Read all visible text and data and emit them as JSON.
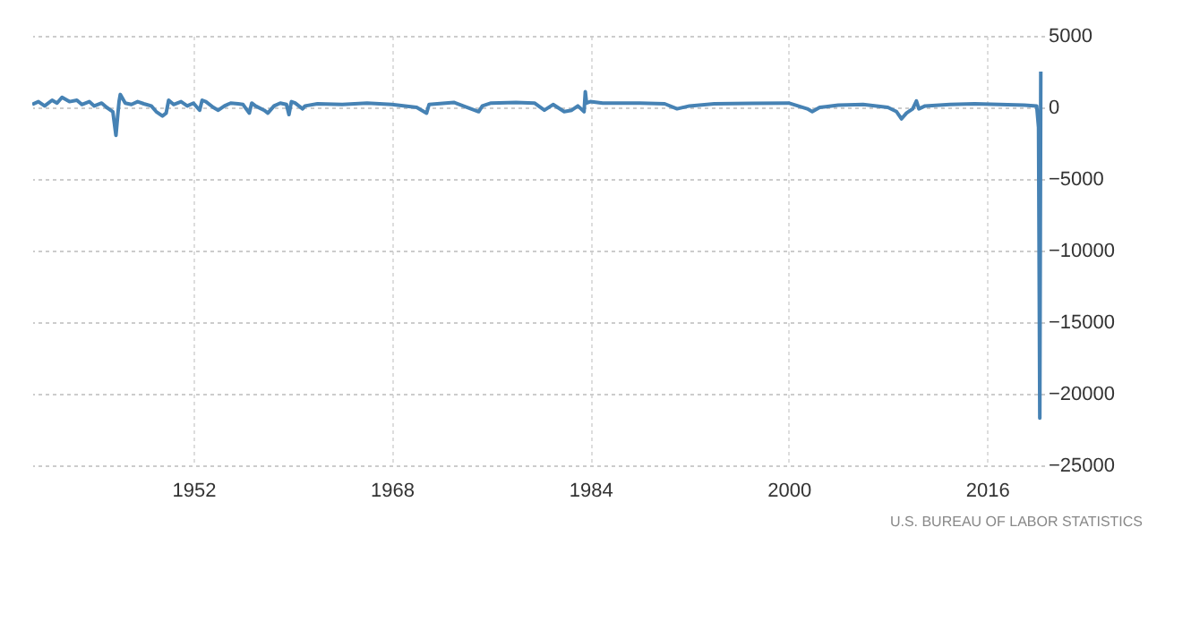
{
  "chart_data": {
    "type": "line",
    "annotations": [
      "U.S. BUREAU OF LABOR STATISTICS"
    ],
    "x": [
      1939.0,
      1939.5,
      1940.0,
      1940.6,
      1941.0,
      1941.4,
      1942.0,
      1942.6,
      1943.0,
      1943.6,
      1944.0,
      1944.6,
      1945.0,
      1945.5,
      1945.75,
      1945.9,
      1946.0,
      1946.1,
      1946.5,
      1947.0,
      1947.5,
      1948.0,
      1948.6,
      1949.0,
      1949.5,
      1949.8,
      1950.0,
      1950.4,
      1951.0,
      1951.5,
      1952.0,
      1952.5,
      1952.7,
      1953.0,
      1953.6,
      1954.0,
      1954.5,
      1955.0,
      1955.6,
      1956.0,
      1956.5,
      1956.7,
      1957.0,
      1957.7,
      1958.0,
      1958.5,
      1959.0,
      1959.5,
      1959.7,
      1959.9,
      1960.2,
      1960.8,
      1961.0,
      1962.0,
      1964.0,
      1966.0,
      1968.0,
      1970.0,
      1970.8,
      1971.0,
      1973.0,
      1975.0,
      1975.3,
      1976.0,
      1978.0,
      1979.5,
      1980.3,
      1981.0,
      1981.9,
      1982.5,
      1983.0,
      1983.5,
      1983.6,
      1983.7,
      1984.0,
      1985.0,
      1988.0,
      1990.0,
      1991.0,
      1992.0,
      1994.0,
      1997.0,
      2000.0,
      2001.5,
      2001.9,
      2002.5,
      2003.0,
      2004.0,
      2006.0,
      2008.0,
      2008.7,
      2009.1,
      2009.5,
      2010.0,
      2010.3,
      2010.5,
      2011.0,
      2013.0,
      2015.0,
      2017.0,
      2019.0,
      2020.0,
      2020.15,
      2020.25,
      2020.33
    ],
    "values": [
      200,
      400,
      100,
      500,
      300,
      700,
      400,
      500,
      200,
      400,
      100,
      300,
      0,
      -300,
      -1960,
      -500,
      400,
      900,
      300,
      200,
      400,
      250,
      100,
      -300,
      -600,
      -400,
      500,
      200,
      400,
      100,
      300,
      -200,
      500,
      400,
      0,
      -200,
      100,
      300,
      250,
      200,
      -400,
      300,
      100,
      -200,
      -400,
      100,
      300,
      200,
      -500,
      400,
      300,
      -100,
      100,
      250,
      200,
      300,
      200,
      0,
      -400,
      200,
      350,
      -300,
      100,
      300,
      350,
      300,
      -200,
      200,
      -300,
      -200,
      100,
      -300,
      1100,
      300,
      400,
      300,
      300,
      250,
      -100,
      100,
      250,
      280,
      300,
      -100,
      -300,
      0,
      50,
      150,
      200,
      0,
      -300,
      -800,
      -400,
      -100,
      450,
      -100,
      100,
      200,
      250,
      200,
      150,
      100,
      -1400,
      -21700,
      2500
    ],
    "color": "#4682b4",
    "xlim": [
      1939,
      2020.6
    ],
    "xticks": [
      1952,
      1968,
      1984,
      2000,
      2016
    ],
    "ylim": [
      -25000,
      5000
    ],
    "yticks": [
      5000,
      0,
      -5000,
      -10000,
      -15000,
      -20000,
      -25000
    ],
    "grid": true
  }
}
